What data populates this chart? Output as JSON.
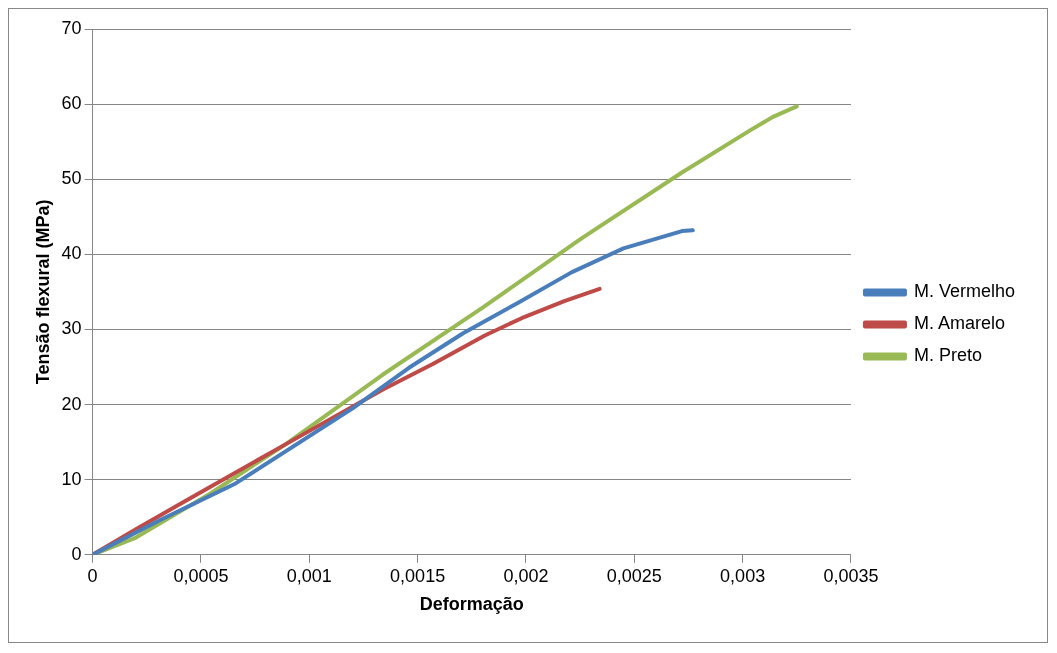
{
  "chart_data": {
    "type": "line",
    "xlabel": "Deformação",
    "ylabel": "Tensão flexural (MPa)",
    "xlim": [
      0,
      0.0035
    ],
    "xticks": [
      {
        "value": 0,
        "label": "0"
      },
      {
        "value": 0.0005,
        "label": "0,0005"
      },
      {
        "value": 0.001,
        "label": "0,001"
      },
      {
        "value": 0.0015,
        "label": "0,0015"
      },
      {
        "value": 0.002,
        "label": "0,002"
      },
      {
        "value": 0.0025,
        "label": "0,0025"
      },
      {
        "value": 0.003,
        "label": "0,003"
      },
      {
        "value": 0.0035,
        "label": "0,0035"
      }
    ],
    "ylim": [
      0,
      70
    ],
    "yticks": [
      0,
      10,
      20,
      30,
      40,
      50,
      60,
      70
    ],
    "grid": "y",
    "legend": "right",
    "marker": "none",
    "line_style": "solid",
    "series": [
      {
        "name": "M. Vermelho",
        "color": "#4a7ebb",
        "x": [
          0,
          0.00031,
          0.00066,
          0.0012,
          0.00146,
          0.00171,
          0.00196,
          0.00221,
          0.00245,
          0.00272,
          0.00277
        ],
        "values": [
          0,
          4.6,
          9.5,
          19.5,
          24.9,
          29.5,
          33.5,
          37.6,
          40.8,
          43.1,
          43.2
        ]
      },
      {
        "name": "M. Amarelo",
        "color": "#be4b48",
        "x": [
          0,
          0.0002,
          0.00043,
          0.00089,
          0.00134,
          0.00157,
          0.00181,
          0.00198,
          0.00218,
          0.00234
        ],
        "values": [
          0,
          3.4,
          7.2,
          14.7,
          22.0,
          25.4,
          29.2,
          31.5,
          33.8,
          35.4
        ]
      },
      {
        "name": "M. Preto",
        "color": "#98b954",
        "x": [
          0,
          0.0002,
          0.00054,
          0.00089,
          0.00134,
          0.0018,
          0.00226,
          0.00272,
          0.00304,
          0.00314,
          0.00325
        ],
        "values": [
          0,
          2.3,
          8.1,
          14.7,
          24.0,
          32.9,
          42.2,
          50.9,
          56.6,
          58.3,
          59.7
        ]
      }
    ]
  }
}
